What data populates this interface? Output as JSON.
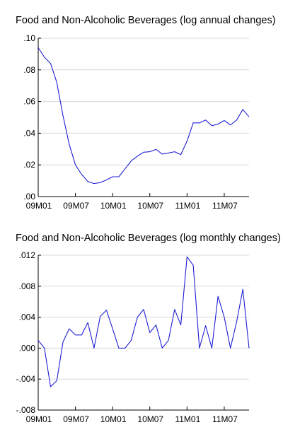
{
  "colors": {
    "line": "#1f1fd6",
    "grid": "#d8d8d8",
    "axis": "#000000"
  },
  "chart_data": [
    {
      "type": "line",
      "title": "Food and Non-Alcoholic Beverages (log annual changes)",
      "xlabel": "",
      "ylabel": "",
      "x_ticks": [
        "09M01",
        "09M07",
        "10M01",
        "10M07",
        "11M01",
        "11M07"
      ],
      "y_ticks": [
        ".00",
        ".02",
        ".04",
        ".06",
        ".08",
        ".10"
      ],
      "ylim": [
        0.0,
        0.1
      ],
      "grid": true,
      "start_period": "2009M01",
      "series": [
        {
          "values": [
            0.094,
            0.088,
            0.084,
            0.072,
            0.051,
            0.033,
            0.02,
            0.014,
            0.0095,
            0.0082,
            0.0088,
            0.0105,
            0.0125,
            0.0125,
            0.0175,
            0.0225,
            0.0255,
            0.028,
            0.0283,
            0.0298,
            0.0268,
            0.0275,
            0.0283,
            0.0265,
            0.035,
            0.0465,
            0.0465,
            0.0483,
            0.0447,
            0.0458,
            0.048,
            0.0452,
            0.0483,
            0.055,
            0.0503
          ]
        }
      ]
    },
    {
      "type": "line",
      "title": "Food and Non-Alcoholic Beverages (log monthly changes)",
      "xlabel": "",
      "ylabel": "",
      "x_ticks": [
        "09M01",
        "09M07",
        "10M01",
        "10M07",
        "11M01",
        "11M07"
      ],
      "y_ticks": [
        "-.008",
        "-.004",
        ".000",
        ".004",
        ".008",
        ".012"
      ],
      "ylim": [
        -0.008,
        0.012
      ],
      "grid": true,
      "start_period": "2009M01",
      "series": [
        {
          "values": [
            0.001,
            0.0,
            -0.005,
            -0.0042,
            0.0008,
            0.0025,
            0.0017,
            0.0017,
            0.0033,
            0.0,
            0.0041,
            0.0049,
            0.0025,
            0.0,
            0.0,
            0.001,
            0.004,
            0.005,
            0.002,
            0.003,
            0.0,
            0.001,
            0.005,
            0.003,
            0.0118,
            0.0107,
            0.0,
            0.0029,
            0.0,
            0.0067,
            0.004,
            0.0,
            0.0034,
            0.0076,
            0.0
          ]
        }
      ]
    }
  ]
}
